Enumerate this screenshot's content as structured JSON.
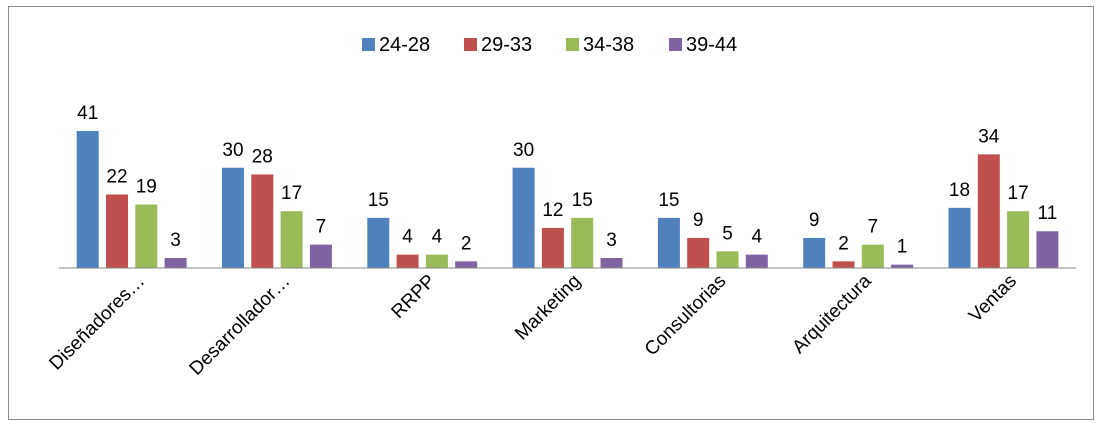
{
  "chart_data": {
    "type": "bar",
    "categories": [
      "Diseñadores…",
      "Desarrollador…",
      "RRPP",
      "Marketing",
      "Consultorias",
      "Arquitectura",
      "Ventas"
    ],
    "series": [
      {
        "name": "24-28",
        "color": "#4f81bd",
        "values": [
          41,
          30,
          15,
          30,
          15,
          9,
          18
        ]
      },
      {
        "name": "29-33",
        "color": "#c0504d",
        "values": [
          22,
          28,
          4,
          12,
          9,
          2,
          34
        ]
      },
      {
        "name": "34-38",
        "color": "#9bbb59",
        "values": [
          19,
          17,
          4,
          15,
          5,
          7,
          17
        ]
      },
      {
        "name": "39-44",
        "color": "#8064a2",
        "values": [
          3,
          7,
          2,
          3,
          4,
          1,
          11
        ]
      }
    ],
    "ylim": [
      0,
      41
    ],
    "grid": false,
    "legend": "top"
  }
}
